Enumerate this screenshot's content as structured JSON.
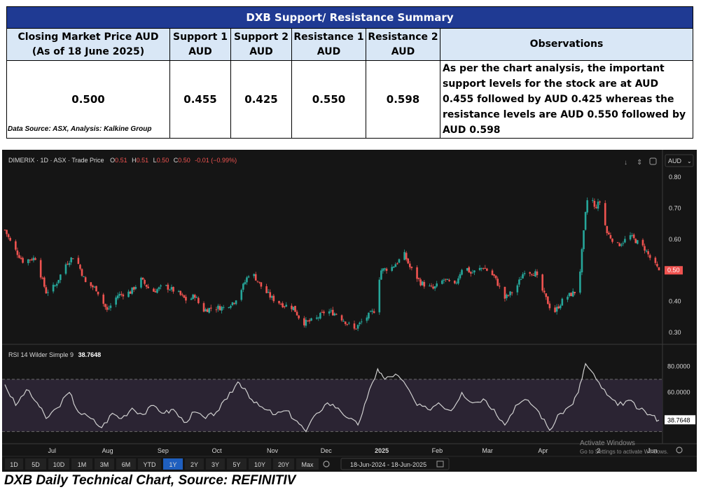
{
  "table": {
    "title": "DXB Support/  Resistance Summary",
    "headers": [
      "Closing Market Price AUD (As of 18 June 2025)",
      "Support 1 AUD",
      "Support 2 AUD",
      "Resistance 1 AUD",
      "Resistance 2 AUD",
      "Observations"
    ],
    "values": [
      "0.500",
      "0.455",
      "0.425",
      "0.550",
      "0.598"
    ],
    "observation": "As per the chart analysis, the important support levels for the stock are at AUD 0.455 followed by AUD 0.425 whereas the resistance levels are AUD 0.550 followed by AUD 0.598",
    "source": "Data Source: ASX, Analysis: Kalkine Group"
  },
  "chart_header": {
    "symbol": "DIMERIX · 1D · ASX · Trade Price",
    "o_label": "O",
    "o_value": "0.51",
    "h_label": "H",
    "h_value": "0.51",
    "l_label": "L",
    "l_value": "0.50",
    "c_label": "C",
    "c_value": "0.50",
    "change": "-0.01 (−0.99%)",
    "currency": "AUD",
    "price_tag": "0.50"
  },
  "rsi_header": {
    "label": "RSI 14 Wilder Simple 9",
    "value": "38.7648"
  },
  "toolbar": {
    "ranges": [
      "1D",
      "5D",
      "10D",
      "1M",
      "3M",
      "6M",
      "YTD",
      "1Y",
      "2Y",
      "3Y",
      "5Y",
      "10Y",
      "20Y",
      "Max"
    ],
    "active": "1Y",
    "date_range": "18-Jun-2024  -  18-Jun-2025"
  },
  "watermark": {
    "line1": "Activate Windows",
    "line2": "Go to Settings to activate Windows."
  },
  "caption": "DXB Daily Technical Chart, Source: REFINITIV",
  "colors": {
    "up": "#26a69a",
    "down": "#ef5350",
    "rsi_band": "#2b2433",
    "rsi_line": "#d0d0d0",
    "bg": "#151515"
  },
  "chart_data": [
    {
      "type": "candlestick",
      "y_ticks": [
        "0.30",
        "0.40",
        "0.50",
        "0.60",
        "0.70",
        "0.80"
      ],
      "ylim": [
        0.28,
        0.82
      ],
      "x_tick_labels": [
        "Jul",
        "Aug",
        "Sep",
        "Oct",
        "Nov",
        "Dec",
        "2025",
        "Feb",
        "Mar",
        "Apr",
        "2",
        "Jun"
      ],
      "x_range": [
        "2024-06-18",
        "2025-06-18"
      ],
      "x_ticks": [
        "2024-07-01",
        "2024-08-01",
        "2024-09-01",
        "2024-10-01",
        "2024-11-01",
        "2024-12-01",
        "2025-01-01",
        "2025-02-01",
        "2025-03-01",
        "2025-04-01",
        "2025-05-02",
        "2025-06-01"
      ],
      "close_path": [
        [
          "2024-06-18",
          0.63
        ],
        [
          "2024-06-22",
          0.58
        ],
        [
          "2024-06-28",
          0.53
        ],
        [
          "2024-07-05",
          0.54
        ],
        [
          "2024-07-11",
          0.43
        ],
        [
          "2024-07-16",
          0.45
        ],
        [
          "2024-07-22",
          0.52
        ],
        [
          "2024-07-27",
          0.55
        ],
        [
          "2024-08-02",
          0.46
        ],
        [
          "2024-08-08",
          0.44
        ],
        [
          "2024-08-14",
          0.37
        ],
        [
          "2024-08-20",
          0.42
        ],
        [
          "2024-08-27",
          0.43
        ],
        [
          "2024-09-02",
          0.47
        ],
        [
          "2024-09-08",
          0.43
        ],
        [
          "2024-09-15",
          0.45
        ],
        [
          "2024-09-22",
          0.43
        ],
        [
          "2024-09-28",
          0.4
        ],
        [
          "2024-10-02",
          0.42
        ],
        [
          "2024-10-06",
          0.37
        ],
        [
          "2024-10-12",
          0.38
        ],
        [
          "2024-10-18",
          0.38
        ],
        [
          "2024-10-24",
          0.4
        ],
        [
          "2024-10-29",
          0.45
        ],
        [
          "2024-11-02",
          0.5
        ],
        [
          "2024-11-09",
          0.44
        ],
        [
          "2024-11-14",
          0.41
        ],
        [
          "2024-11-20",
          0.39
        ],
        [
          "2024-11-26",
          0.38
        ],
        [
          "2024-12-01",
          0.33
        ],
        [
          "2024-12-08",
          0.34
        ],
        [
          "2024-12-14",
          0.37
        ],
        [
          "2024-12-20",
          0.36
        ],
        [
          "2024-12-26",
          0.33
        ],
        [
          "2024-12-30",
          0.31
        ],
        [
          "2025-01-04",
          0.34
        ],
        [
          "2025-01-10",
          0.37
        ],
        [
          "2025-01-11",
          0.43
        ],
        [
          "2025-01-14",
          0.5
        ],
        [
          "2025-01-20",
          0.51
        ],
        [
          "2025-01-27",
          0.55
        ],
        [
          "2025-01-30",
          0.51
        ],
        [
          "2025-02-05",
          0.46
        ],
        [
          "2025-02-12",
          0.44
        ],
        [
          "2025-02-18",
          0.47
        ],
        [
          "2025-02-24",
          0.45
        ],
        [
          "2025-03-01",
          0.52
        ],
        [
          "2025-03-05",
          0.49
        ],
        [
          "2025-03-12",
          0.51
        ],
        [
          "2025-03-18",
          0.48
        ],
        [
          "2025-03-24",
          0.41
        ],
        [
          "2025-03-30",
          0.44
        ],
        [
          "2025-04-04",
          0.5
        ],
        [
          "2025-04-10",
          0.49
        ],
        [
          "2025-04-15",
          0.42
        ],
        [
          "2025-04-20",
          0.36
        ],
        [
          "2025-04-26",
          0.41
        ],
        [
          "2025-05-02",
          0.43
        ],
        [
          "2025-05-05",
          0.5
        ],
        [
          "2025-05-08",
          0.68
        ],
        [
          "2025-05-10",
          0.77
        ],
        [
          "2025-05-13",
          0.7
        ],
        [
          "2025-05-16",
          0.72
        ],
        [
          "2025-05-20",
          0.62
        ],
        [
          "2025-05-26",
          0.58
        ],
        [
          "2025-06-02",
          0.61
        ],
        [
          "2025-06-06",
          0.59
        ],
        [
          "2025-06-10",
          0.57
        ],
        [
          "2025-06-14",
          0.53
        ],
        [
          "2025-06-18",
          0.5
        ]
      ]
    },
    {
      "type": "line",
      "name": "RSI 14 Wilder Simple 9",
      "y_ticks": [
        "60.0000",
        "80.0000"
      ],
      "ylim": [
        25,
        85
      ],
      "band": [
        30,
        70
      ],
      "points": [
        [
          "2024-06-18",
          66
        ],
        [
          "2024-06-24",
          50
        ],
        [
          "2024-06-30",
          62
        ],
        [
          "2024-07-06",
          52
        ],
        [
          "2024-07-11",
          40
        ],
        [
          "2024-07-17",
          48
        ],
        [
          "2024-07-24",
          60
        ],
        [
          "2024-07-29",
          45
        ],
        [
          "2024-08-05",
          40
        ],
        [
          "2024-08-11",
          33
        ],
        [
          "2024-08-17",
          44
        ],
        [
          "2024-08-22",
          40
        ],
        [
          "2024-08-28",
          48
        ],
        [
          "2024-09-03",
          43
        ],
        [
          "2024-09-09",
          50
        ],
        [
          "2024-09-15",
          44
        ],
        [
          "2024-09-20",
          47
        ],
        [
          "2024-09-26",
          37
        ],
        [
          "2024-10-02",
          45
        ],
        [
          "2024-10-08",
          40
        ],
        [
          "2024-10-14",
          45
        ],
        [
          "2024-10-20",
          55
        ],
        [
          "2024-10-26",
          68
        ],
        [
          "2024-10-30",
          63
        ],
        [
          "2024-11-04",
          52
        ],
        [
          "2024-11-10",
          47
        ],
        [
          "2024-11-16",
          43
        ],
        [
          "2024-11-22",
          46
        ],
        [
          "2024-11-28",
          38
        ],
        [
          "2024-12-03",
          30
        ],
        [
          "2024-12-09",
          44
        ],
        [
          "2024-12-15",
          52
        ],
        [
          "2024-12-21",
          48
        ],
        [
          "2024-12-27",
          40
        ],
        [
          "2025-01-01",
          35
        ],
        [
          "2025-01-06",
          55
        ],
        [
          "2025-01-12",
          78
        ],
        [
          "2025-01-16",
          70
        ],
        [
          "2025-01-22",
          74
        ],
        [
          "2025-01-28",
          65
        ],
        [
          "2025-02-03",
          50
        ],
        [
          "2025-02-09",
          47
        ],
        [
          "2025-02-15",
          52
        ],
        [
          "2025-02-22",
          46
        ],
        [
          "2025-02-28",
          60
        ],
        [
          "2025-03-06",
          52
        ],
        [
          "2025-03-12",
          55
        ],
        [
          "2025-03-18",
          47
        ],
        [
          "2025-03-24",
          35
        ],
        [
          "2025-03-30",
          50
        ],
        [
          "2025-04-06",
          54
        ],
        [
          "2025-04-12",
          45
        ],
        [
          "2025-04-18",
          31
        ],
        [
          "2025-04-24",
          44
        ],
        [
          "2025-04-30",
          50
        ],
        [
          "2025-05-04",
          60
        ],
        [
          "2025-05-08",
          82
        ],
        [
          "2025-05-14",
          70
        ],
        [
          "2025-05-20",
          58
        ],
        [
          "2025-05-26",
          50
        ],
        [
          "2025-06-01",
          54
        ],
        [
          "2025-06-07",
          47
        ],
        [
          "2025-06-13",
          43
        ],
        [
          "2025-06-18",
          38.76
        ]
      ]
    }
  ]
}
